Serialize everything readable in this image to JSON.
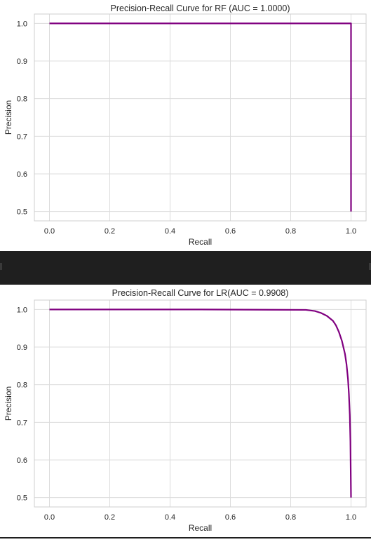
{
  "chart_data": [
    {
      "type": "line",
      "title": "Precision-Recall Curve for RF (AUC = 1.0000)",
      "xlabel": "Recall",
      "ylabel": "Precision",
      "xlim": [
        -0.05,
        1.05
      ],
      "ylim": [
        0.475,
        1.025
      ],
      "xticks": [
        "0.0",
        "0.2",
        "0.4",
        "0.6",
        "0.8",
        "1.0"
      ],
      "yticks": [
        "0.5",
        "0.6",
        "0.7",
        "0.8",
        "0.9",
        "1.0"
      ],
      "grid": true,
      "line_color": "#800080",
      "series": [
        {
          "x": [
            0.0,
            1.0,
            1.0
          ],
          "y": [
            1.0,
            1.0,
            0.5
          ]
        }
      ]
    },
    {
      "type": "line",
      "title": "Precision-Recall Curve for LR(AUC = 0.9908)",
      "xlabel": "Recall",
      "ylabel": "Precision",
      "xlim": [
        -0.05,
        1.05
      ],
      "ylim": [
        0.475,
        1.025
      ],
      "xticks": [
        "0.0",
        "0.2",
        "0.4",
        "0.6",
        "0.8",
        "1.0"
      ],
      "yticks": [
        "0.5",
        "0.6",
        "0.7",
        "0.8",
        "0.9",
        "1.0"
      ],
      "grid": true,
      "line_color": "#800080",
      "series": [
        {
          "x": [
            0.0,
            0.5,
            0.85,
            0.88,
            0.9,
            0.92,
            0.94,
            0.95,
            0.96,
            0.97,
            0.98,
            0.985,
            0.99,
            0.993,
            0.996,
            0.998,
            1.0
          ],
          "y": [
            1.0,
            1.0,
            0.999,
            0.996,
            0.991,
            0.983,
            0.97,
            0.958,
            0.94,
            0.916,
            0.882,
            0.855,
            0.815,
            0.775,
            0.72,
            0.65,
            0.5
          ]
        }
      ]
    }
  ]
}
